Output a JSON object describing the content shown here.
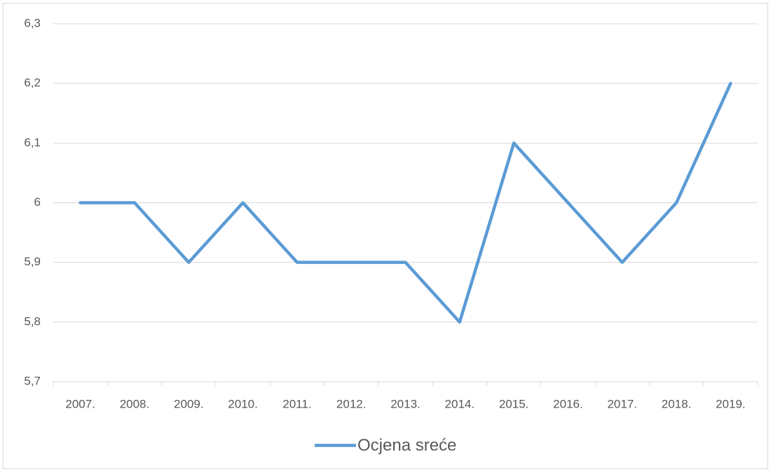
{
  "chart_data": {
    "type": "line",
    "categories": [
      "2007.",
      "2008.",
      "2009.",
      "2010.",
      "2011.",
      "2012.",
      "2013.",
      "2014.",
      "2015.",
      "2016.",
      "2017.",
      "2018.",
      "2019."
    ],
    "series": [
      {
        "name": "Ocjena sreće",
        "color": "#5b9bd5",
        "values": [
          6,
          6,
          5.9,
          6,
          5.9,
          5.9,
          5.9,
          5.8,
          6.1,
          6,
          5.9,
          6,
          6.2
        ]
      }
    ],
    "ylim": [
      5.7,
      6.3
    ],
    "yticks": [
      {
        "value": 5.7,
        "label": "5,7"
      },
      {
        "value": 5.8,
        "label": "5,8"
      },
      {
        "value": 5.9,
        "label": "5,9"
      },
      6,
      {
        "value": 6.1,
        "label": "6,1"
      },
      {
        "value": 6.2,
        "label": "6,2"
      },
      {
        "value": 6.3,
        "label": "6,3"
      }
    ],
    "grid": true,
    "legend": "bottom"
  }
}
